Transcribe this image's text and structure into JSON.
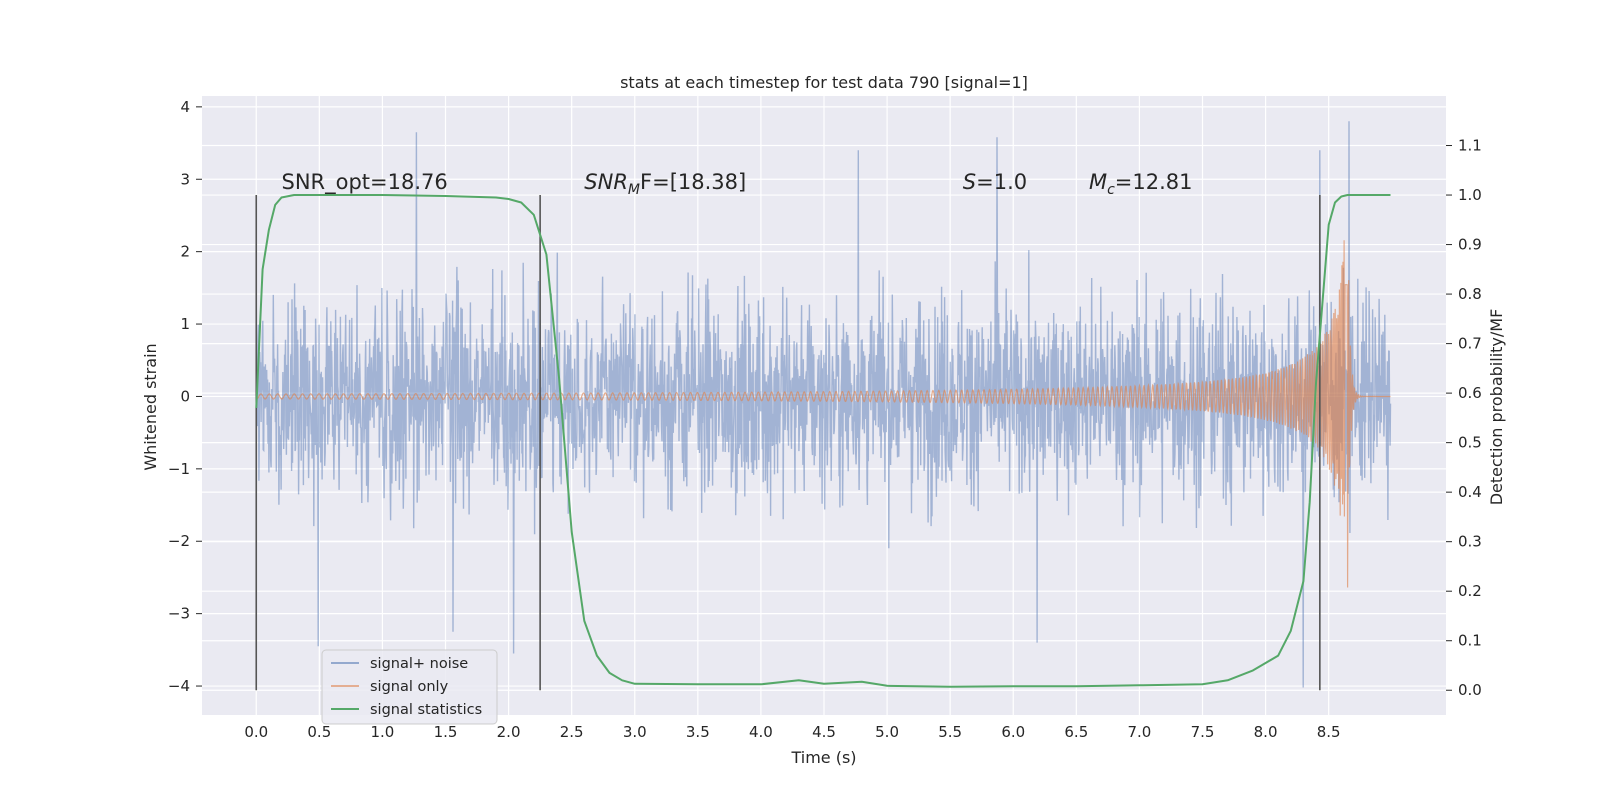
{
  "chart_data": {
    "type": "line",
    "title": "stats at each timestep for test data 790 [signal=1]",
    "xlabel": "Time (s)",
    "ylabel_left": "Whitened strain",
    "ylabel_right": "Detection probability/MF",
    "xlim": [
      -0.43,
      9.43
    ],
    "ylim_left": [
      -4.4,
      4.15
    ],
    "ylim_right": [
      -0.05,
      1.2
    ],
    "x_ticks": [
      0.0,
      0.5,
      1.0,
      1.5,
      2.0,
      2.5,
      3.0,
      3.5,
      4.0,
      4.5,
      5.0,
      5.5,
      6.0,
      6.5,
      7.0,
      7.5,
      8.0,
      8.5
    ],
    "x_tick_labels": [
      "0.0",
      "0.5",
      "1.0",
      "1.5",
      "2.0",
      "2.5",
      "3.0",
      "3.5",
      "4.0",
      "4.5",
      "5.0",
      "5.5",
      "6.0",
      "6.5",
      "7.0",
      "7.5",
      "8.0",
      "8.5"
    ],
    "y_left_ticks": [
      -4,
      -3,
      -2,
      -1,
      0,
      1,
      2,
      3,
      4
    ],
    "y_left_tick_labels": [
      "−4",
      "−3",
      "−2",
      "−1",
      "0",
      "1",
      "2",
      "3",
      "4"
    ],
    "y_right_ticks": [
      0.0,
      0.1,
      0.2,
      0.3,
      0.4,
      0.5,
      0.6,
      0.7,
      0.8,
      0.9,
      1.0,
      1.1
    ],
    "y_right_tick_labels": [
      "0.0",
      "0.1",
      "0.2",
      "0.3",
      "0.4",
      "0.5",
      "0.6",
      "0.7",
      "0.8",
      "0.9",
      "1.0",
      "1.1"
    ],
    "grid": true,
    "legend_position": "lower-left",
    "series": [
      {
        "name": "signal+ noise",
        "axis": "left",
        "color": "#4c72b0",
        "x_range": [
          0.0,
          8.99
        ],
        "envelope_typical": [
          -1.7,
          1.7
        ],
        "peaks": [
          [
            0.49,
            -3.45
          ],
          [
            1.27,
            3.65
          ],
          [
            1.56,
            -3.25
          ],
          [
            2.04,
            -3.55
          ],
          [
            4.77,
            3.4
          ],
          [
            5.87,
            3.58
          ],
          [
            6.19,
            -3.4
          ],
          [
            8.3,
            -4.02
          ],
          [
            8.43,
            3.4
          ],
          [
            8.66,
            3.8
          ]
        ]
      },
      {
        "name": "signal only",
        "axis": "left",
        "color": "#dd8452",
        "chirp": {
          "start": 3.0,
          "merger": 8.65,
          "peak_amplitude": 2.65,
          "end": 8.99
        }
      },
      {
        "name": "signal statistics",
        "axis": "right",
        "color": "#55a868",
        "x": [
          0.0,
          0.05,
          0.1,
          0.15,
          0.2,
          0.3,
          0.5,
          1.0,
          1.5,
          1.9,
          2.0,
          2.1,
          2.2,
          2.3,
          2.4,
          2.5,
          2.6,
          2.7,
          2.8,
          2.9,
          3.0,
          3.5,
          4.0,
          4.3,
          4.5,
          4.8,
          5.0,
          5.5,
          6.0,
          6.5,
          7.0,
          7.5,
          7.7,
          7.9,
          8.1,
          8.2,
          8.3,
          8.35,
          8.4,
          8.5,
          8.55,
          8.6,
          8.65,
          8.8,
          8.99
        ],
        "y": [
          0.57,
          0.85,
          0.93,
          0.98,
          0.995,
          1.0,
          1.0,
          1.0,
          0.998,
          0.995,
          0.992,
          0.985,
          0.96,
          0.88,
          0.63,
          0.32,
          0.14,
          0.07,
          0.035,
          0.02,
          0.013,
          0.012,
          0.012,
          0.02,
          0.013,
          0.017,
          0.009,
          0.007,
          0.008,
          0.008,
          0.01,
          0.012,
          0.02,
          0.04,
          0.07,
          0.12,
          0.22,
          0.38,
          0.62,
          0.94,
          0.985,
          0.997,
          1.0,
          1.0,
          1.0
        ]
      }
    ],
    "vertical_lines": [
      0.0,
      2.25,
      8.43
    ],
    "vertical_line_range": [
      0.0,
      1.0
    ],
    "annotations": [
      {
        "id": "snr_opt",
        "text": "SNR_opt=18.76",
        "x": 0.2
      },
      {
        "id": "snr_mf",
        "base": "SNR",
        "sub": "M",
        "rest": "F=[18.38]",
        "x": 2.6
      },
      {
        "id": "s",
        "base": "S",
        "rest": "=1.0",
        "x": 5.6
      },
      {
        "id": "mc",
        "base": "M",
        "sub": "c",
        "rest": "=12.81",
        "x": 6.6
      }
    ],
    "annotation_y": 1.0
  }
}
